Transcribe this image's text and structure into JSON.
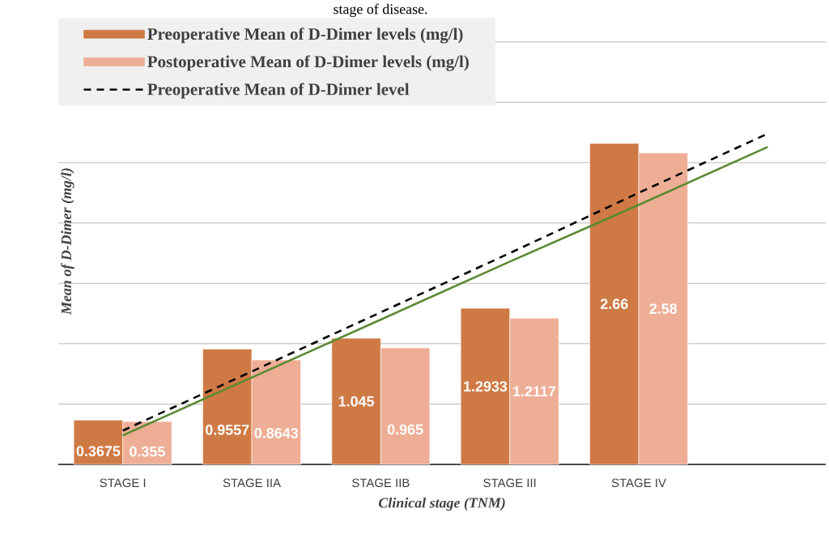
{
  "chart_data": {
    "type": "bar",
    "title": "stage of disease.",
    "xlabel": "Clinical stage (TNM)",
    "ylabel": "Mean of D-Dimer (mg/l)",
    "categories": [
      "STAGE I",
      "STAGE IIA",
      "STAGE IIB",
      "STAGE III",
      "STAGE IV",
      null
    ],
    "series": [
      {
        "name": "Preoperative Mean of D-Dimer levels (mg/l)",
        "color": "#cf7a45",
        "values": [
          0.3675,
          0.9557,
          1.045,
          1.2933,
          2.66,
          null
        ],
        "value_labels": [
          "0.3675",
          "0.9557",
          "1.045",
          "1.2933",
          "2.66",
          null
        ]
      },
      {
        "name": "Postoperative Mean of D-Dimer levels (mg/l)",
        "color": "#eeae96",
        "values": [
          0.355,
          0.8643,
          0.965,
          1.2117,
          2.58,
          null
        ],
        "value_labels": [
          "0.355",
          "0.8643",
          "0.965",
          "1.2117",
          "2.58",
          null
        ]
      },
      {
        "name": "Preoperative Mean of D-Dimer level",
        "type": "line",
        "line_style": "dashed",
        "color": "#000000",
        "values": [
          0.28,
          0.77,
          1.26,
          1.75,
          2.25,
          2.74
        ]
      },
      {
        "type": "line",
        "line_style": "solid",
        "color": "#5b8a32",
        "values": [
          0.24,
          0.72,
          1.2,
          1.68,
          2.15,
          2.63
        ]
      }
    ],
    "ylim": [
      0,
      3.7
    ],
    "yticks": [
      {
        "value": 0.5,
        "label": null
      },
      {
        "value": 1,
        "label": null
      },
      {
        "value": 1.5,
        "label": null
      },
      {
        "value": 2,
        "label": null
      },
      {
        "value": 2.5,
        "label": null
      },
      {
        "value": 3,
        "label": null
      },
      {
        "value": 3.5,
        "label": null
      }
    ],
    "grid": "y",
    "legend": "top left"
  }
}
